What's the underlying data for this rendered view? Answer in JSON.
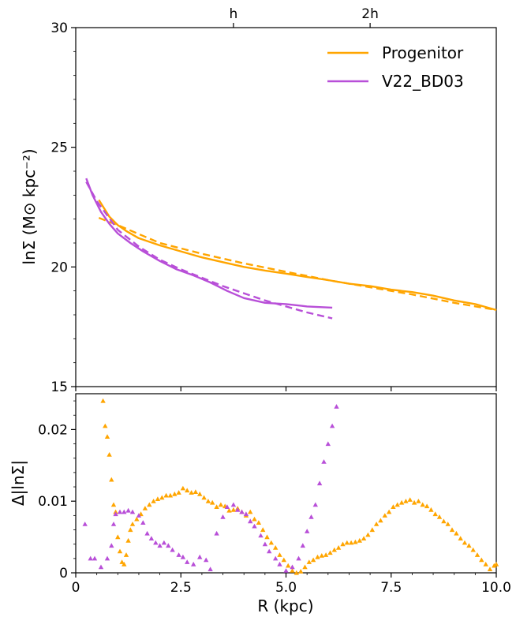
{
  "chart_data": [
    {
      "type": "line",
      "ylabel": "lnΣ (M⊙ kpc⁻²)",
      "xlim": [
        0,
        10
      ],
      "ylim": [
        15,
        30
      ],
      "y_ticks": [
        "15",
        "20",
        "25",
        "30"
      ],
      "top_ticks": [
        {
          "label": "h",
          "x": 3.75
        },
        {
          "label": "2h",
          "x": 7.0
        }
      ],
      "grid": false,
      "legend_position": "top-right",
      "series": [
        {
          "name": "Progenitor",
          "color": "#FFA500",
          "style": "solid",
          "x": [
            0.55,
            0.8,
            1.0,
            1.2,
            1.5,
            2.0,
            2.5,
            3.0,
            3.5,
            4.0,
            4.5,
            5.0,
            5.5,
            6.0,
            6.5,
            7.0,
            7.5,
            8.0,
            8.5,
            9.0,
            9.5,
            10.0
          ],
          "y": [
            22.8,
            22.1,
            21.75,
            21.5,
            21.2,
            20.9,
            20.65,
            20.4,
            20.2,
            20.0,
            19.85,
            19.72,
            19.58,
            19.45,
            19.3,
            19.2,
            19.05,
            18.95,
            18.8,
            18.6,
            18.45,
            18.2
          ]
        },
        {
          "name": "Progenitor fit",
          "color": "#FFA500",
          "style": "dashed",
          "x": [
            0.55,
            1.0,
            2.0,
            3.0,
            4.0,
            5.0,
            6.0,
            7.0,
            8.0,
            9.0,
            10.0
          ],
          "y": [
            22.05,
            21.75,
            21.0,
            20.55,
            20.15,
            19.8,
            19.45,
            19.15,
            18.85,
            18.5,
            18.2
          ]
        },
        {
          "name": "V22_BD03",
          "color": "#B84FD8",
          "style": "solid",
          "x": [
            0.25,
            0.4,
            0.6,
            0.8,
            1.0,
            1.3,
            1.6,
            2.0,
            2.4,
            2.8,
            3.2,
            3.6,
            4.0,
            4.5,
            5.0,
            5.5,
            6.1
          ],
          "y": [
            23.7,
            23.0,
            22.3,
            21.8,
            21.4,
            21.0,
            20.65,
            20.25,
            19.9,
            19.65,
            19.35,
            19.0,
            18.7,
            18.5,
            18.45,
            18.35,
            18.3
          ]
        },
        {
          "name": "V22_BD03 fit",
          "color": "#B84FD8",
          "style": "dashed",
          "x": [
            0.25,
            0.5,
            1.0,
            1.5,
            2.0,
            2.5,
            3.0,
            3.5,
            4.0,
            4.5,
            5.0,
            5.5,
            6.1
          ],
          "y": [
            23.55,
            22.75,
            21.55,
            20.85,
            20.3,
            19.9,
            19.55,
            19.2,
            18.9,
            18.6,
            18.35,
            18.1,
            17.85
          ]
        }
      ]
    },
    {
      "type": "scatter",
      "xlabel": "R (kpc)",
      "ylabel": "Δ|lnΣ|",
      "xlim": [
        0,
        10
      ],
      "ylim": [
        0,
        0.025
      ],
      "x_ticks": [
        "0",
        "2.5",
        "5.0",
        "7.5",
        "10.0"
      ],
      "y_ticks": [
        "0",
        "0.01",
        "0.02"
      ],
      "marker": "triangle",
      "series": [
        {
          "name": "Progenitor",
          "color": "#FFA500",
          "points": [
            [
              0.65,
              0.024
            ],
            [
              0.7,
              0.0205
            ],
            [
              0.75,
              0.019
            ],
            [
              0.8,
              0.0165
            ],
            [
              0.85,
              0.013
            ],
            [
              0.9,
              0.0095
            ],
            [
              0.95,
              0.0085
            ],
            [
              1.0,
              0.005
            ],
            [
              1.05,
              0.003
            ],
            [
              1.1,
              0.0015
            ],
            [
              1.15,
              0.0012
            ],
            [
              1.2,
              0.0025
            ],
            [
              1.25,
              0.0045
            ],
            [
              1.3,
              0.006
            ],
            [
              1.35,
              0.0068
            ],
            [
              1.45,
              0.0075
            ],
            [
              1.55,
              0.0082
            ],
            [
              1.65,
              0.009
            ],
            [
              1.75,
              0.0095
            ],
            [
              1.85,
              0.01
            ],
            [
              1.95,
              0.0103
            ],
            [
              2.05,
              0.0105
            ],
            [
              2.15,
              0.0108
            ],
            [
              2.25,
              0.0108
            ],
            [
              2.35,
              0.011
            ],
            [
              2.45,
              0.0112
            ],
            [
              2.55,
              0.0118
            ],
            [
              2.65,
              0.0115
            ],
            [
              2.75,
              0.0112
            ],
            [
              2.85,
              0.0113
            ],
            [
              2.95,
              0.011
            ],
            [
              3.05,
              0.0105
            ],
            [
              3.15,
              0.01
            ],
            [
              3.25,
              0.0098
            ],
            [
              3.35,
              0.0092
            ],
            [
              3.45,
              0.0095
            ],
            [
              3.55,
              0.0093
            ],
            [
              3.65,
              0.0087
            ],
            [
              3.75,
              0.0088
            ],
            [
              3.85,
              0.009
            ],
            [
              3.95,
              0.0085
            ],
            [
              4.05,
              0.008
            ],
            [
              4.15,
              0.0085
            ],
            [
              4.25,
              0.0075
            ],
            [
              4.35,
              0.007
            ],
            [
              4.45,
              0.006
            ],
            [
              4.55,
              0.005
            ],
            [
              4.65,
              0.0042
            ],
            [
              4.75,
              0.0035
            ],
            [
              4.85,
              0.0025
            ],
            [
              4.95,
              0.0018
            ],
            [
              5.05,
              0.001
            ],
            [
              5.15,
              0.0003
            ],
            [
              5.25,
              0.0
            ],
            [
              5.35,
              0.0002
            ],
            [
              5.45,
              0.0008
            ],
            [
              5.55,
              0.0015
            ],
            [
              5.65,
              0.0018
            ],
            [
              5.75,
              0.0022
            ],
            [
              5.85,
              0.0024
            ],
            [
              5.95,
              0.0025
            ],
            [
              6.05,
              0.0028
            ],
            [
              6.15,
              0.0032
            ],
            [
              6.25,
              0.0035
            ],
            [
              6.35,
              0.004
            ],
            [
              6.45,
              0.0042
            ],
            [
              6.55,
              0.0042
            ],
            [
              6.65,
              0.0043
            ],
            [
              6.75,
              0.0045
            ],
            [
              6.85,
              0.0048
            ],
            [
              6.95,
              0.0053
            ],
            [
              7.05,
              0.006
            ],
            [
              7.15,
              0.0068
            ],
            [
              7.25,
              0.0073
            ],
            [
              7.35,
              0.008
            ],
            [
              7.45,
              0.0085
            ],
            [
              7.55,
              0.0092
            ],
            [
              7.65,
              0.0095
            ],
            [
              7.75,
              0.0098
            ],
            [
              7.85,
              0.01
            ],
            [
              7.95,
              0.0102
            ],
            [
              8.05,
              0.0098
            ],
            [
              8.15,
              0.01
            ],
            [
              8.25,
              0.0095
            ],
            [
              8.35,
              0.0093
            ],
            [
              8.45,
              0.0088
            ],
            [
              8.55,
              0.0082
            ],
            [
              8.65,
              0.0078
            ],
            [
              8.75,
              0.0072
            ],
            [
              8.85,
              0.0068
            ],
            [
              8.95,
              0.006
            ],
            [
              9.05,
              0.0055
            ],
            [
              9.15,
              0.0048
            ],
            [
              9.25,
              0.0042
            ],
            [
              9.35,
              0.0038
            ],
            [
              9.45,
              0.0032
            ],
            [
              9.55,
              0.0025
            ],
            [
              9.65,
              0.0018
            ],
            [
              9.75,
              0.0012
            ],
            [
              9.85,
              0.0005
            ],
            [
              9.95,
              0.001
            ],
            [
              10.0,
              0.0012
            ]
          ]
        },
        {
          "name": "V22_BD03",
          "color": "#B84FD8",
          "points": [
            [
              0.22,
              0.0068
            ],
            [
              0.35,
              0.002
            ],
            [
              0.45,
              0.002
            ],
            [
              0.6,
              0.0008
            ],
            [
              0.75,
              0.002
            ],
            [
              0.85,
              0.0038
            ],
            [
              0.9,
              0.0068
            ],
            [
              0.95,
              0.0082
            ],
            [
              1.05,
              0.0085
            ],
            [
              1.15,
              0.0085
            ],
            [
              1.25,
              0.0087
            ],
            [
              1.35,
              0.0085
            ],
            [
              1.5,
              0.008
            ],
            [
              1.6,
              0.007
            ],
            [
              1.7,
              0.0055
            ],
            [
              1.8,
              0.0048
            ],
            [
              1.9,
              0.0042
            ],
            [
              2.0,
              0.0038
            ],
            [
              2.1,
              0.0042
            ],
            [
              2.2,
              0.0038
            ],
            [
              2.3,
              0.0032
            ],
            [
              2.45,
              0.0025
            ],
            [
              2.55,
              0.0022
            ],
            [
              2.65,
              0.0015
            ],
            [
              2.8,
              0.0012
            ],
            [
              2.95,
              0.0022
            ],
            [
              3.1,
              0.0018
            ],
            [
              3.2,
              0.0005
            ],
            [
              3.35,
              0.0055
            ],
            [
              3.5,
              0.0078
            ],
            [
              3.6,
              0.0092
            ],
            [
              3.75,
              0.0095
            ],
            [
              3.85,
              0.0088
            ],
            [
              3.95,
              0.0085
            ],
            [
              4.05,
              0.0082
            ],
            [
              4.15,
              0.0072
            ],
            [
              4.25,
              0.0065
            ],
            [
              4.4,
              0.0052
            ],
            [
              4.5,
              0.004
            ],
            [
              4.6,
              0.003
            ],
            [
              4.75,
              0.002
            ],
            [
              4.85,
              0.0012
            ],
            [
              5.0,
              0.0003
            ],
            [
              5.15,
              0.0008
            ],
            [
              5.3,
              0.002
            ],
            [
              5.4,
              0.0038
            ],
            [
              5.5,
              0.0058
            ],
            [
              5.6,
              0.0078
            ],
            [
              5.7,
              0.0095
            ],
            [
              5.8,
              0.0125
            ],
            [
              5.9,
              0.0155
            ],
            [
              6.0,
              0.018
            ],
            [
              6.1,
              0.0205
            ],
            [
              6.2,
              0.0232
            ]
          ]
        }
      ]
    }
  ]
}
